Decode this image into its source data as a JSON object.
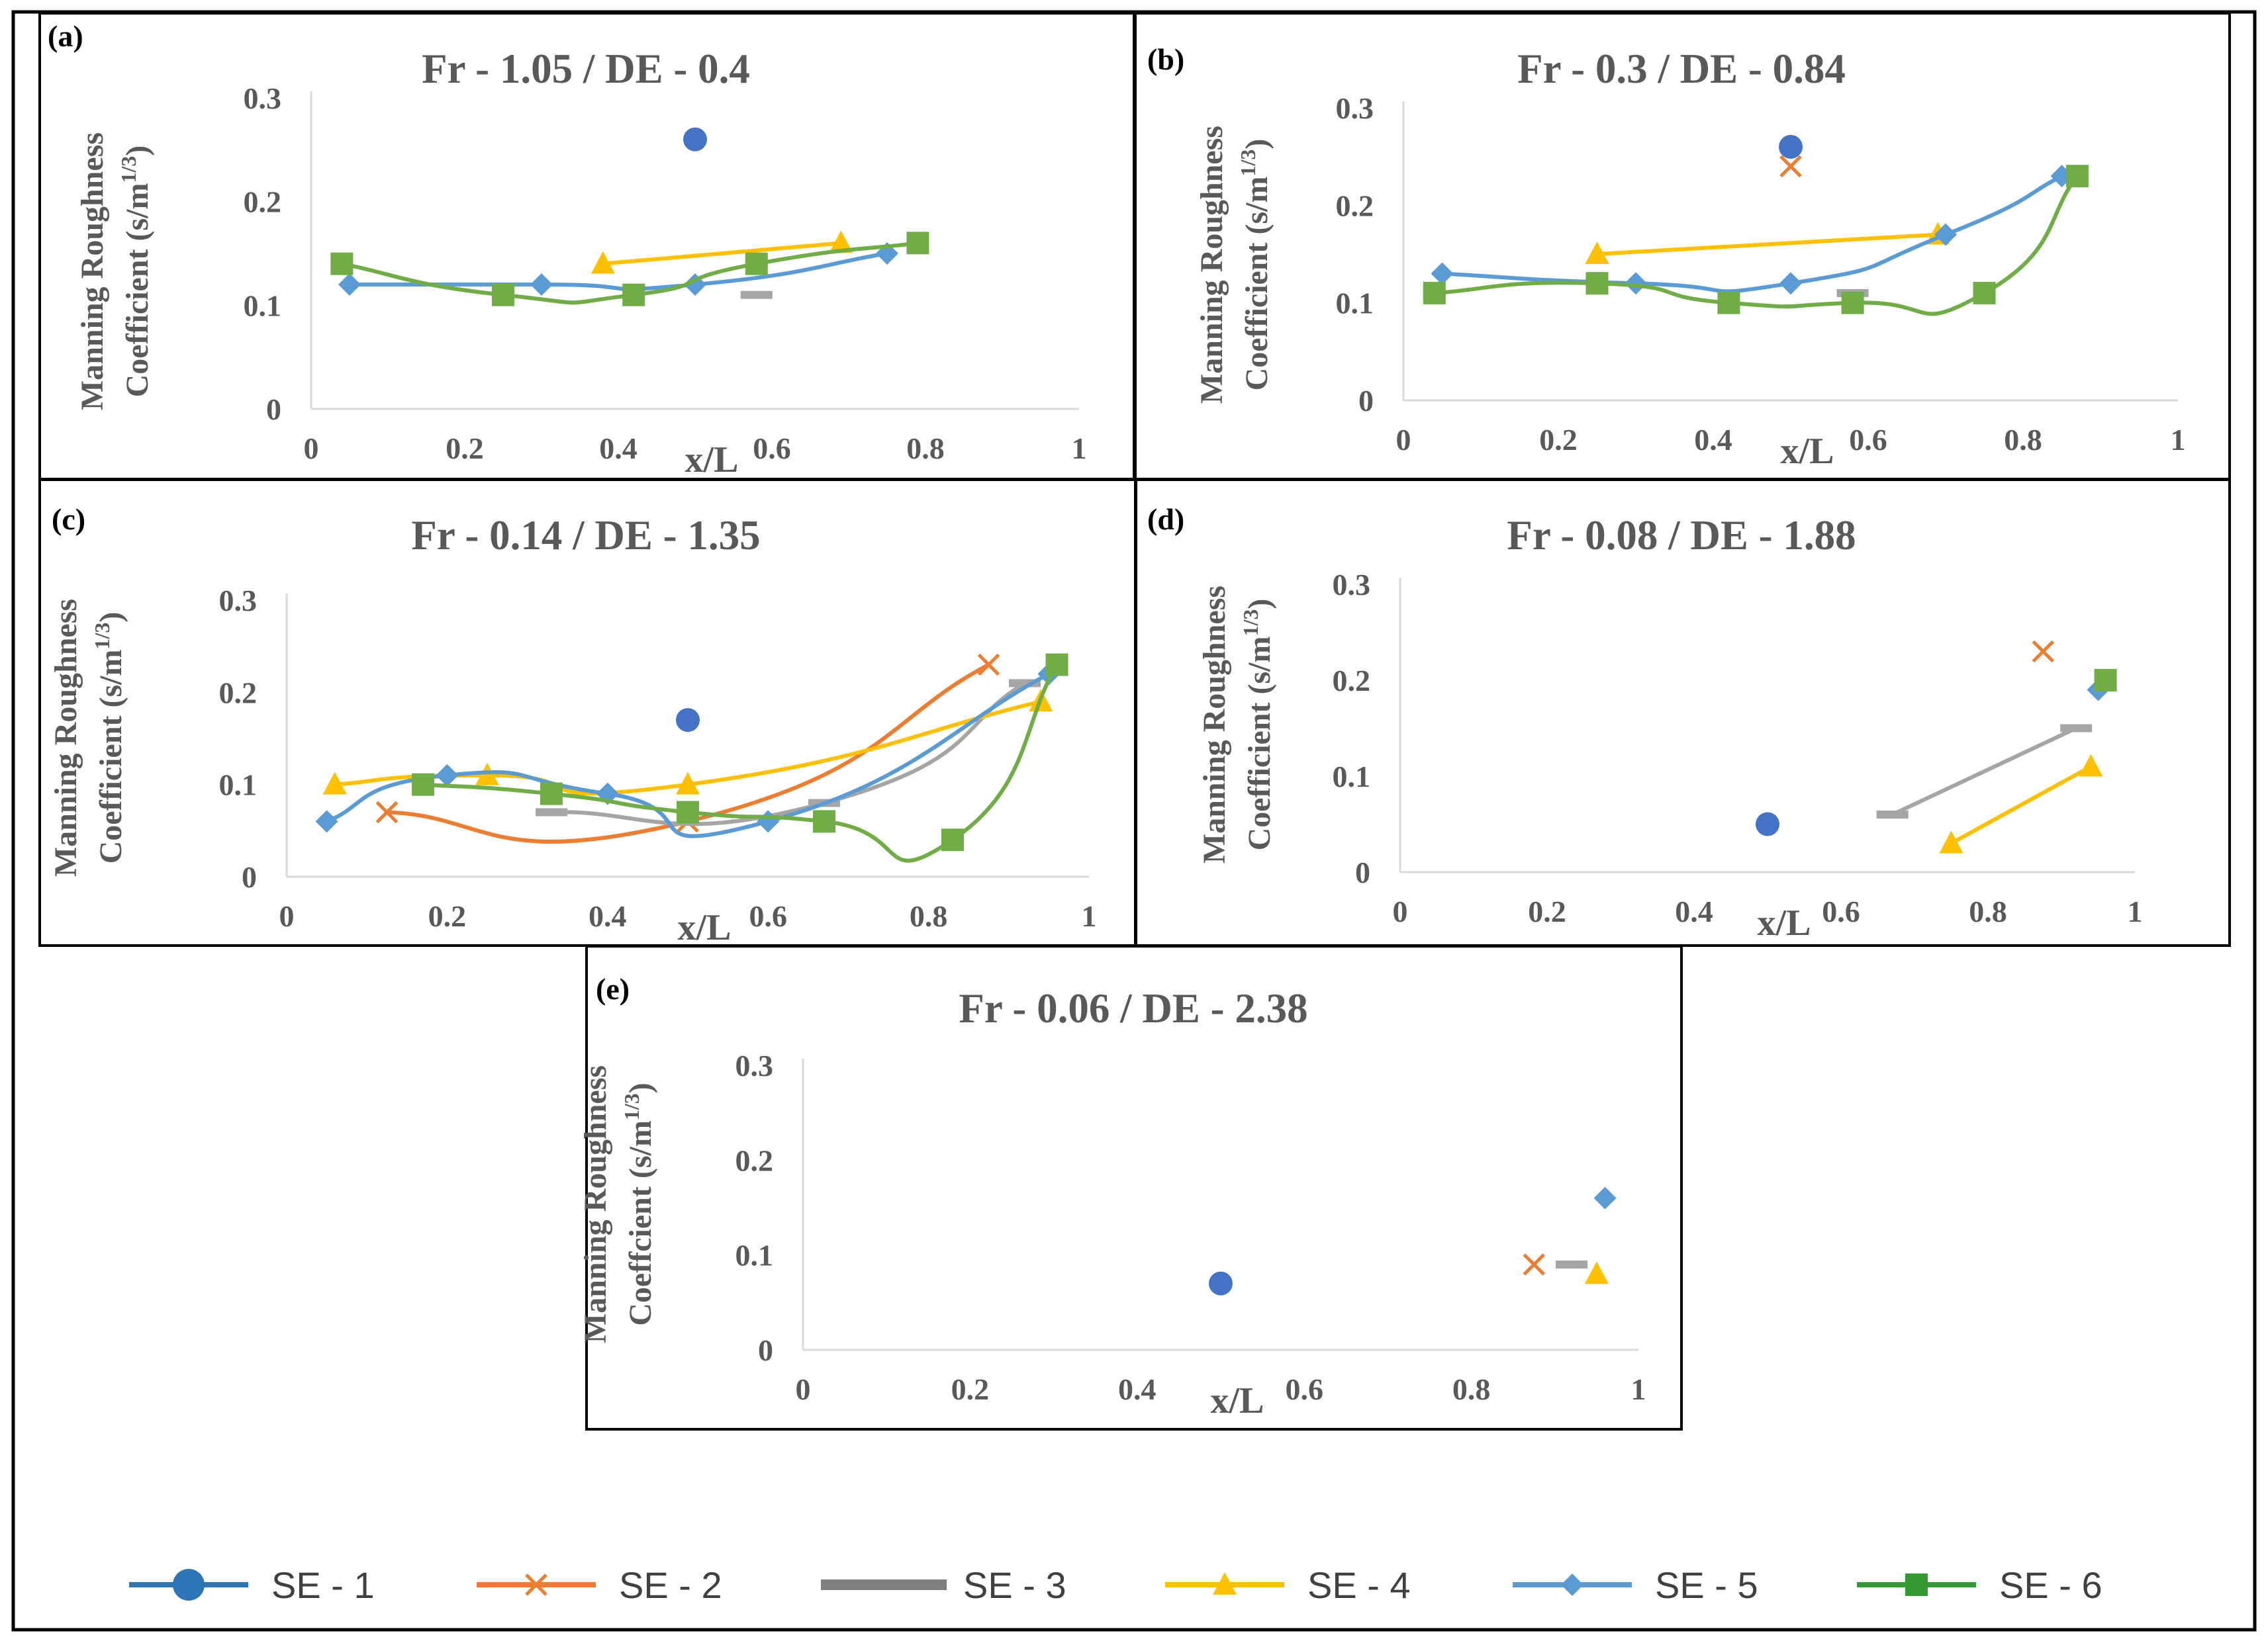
{
  "colors": {
    "SE - 1": "#4472C4",
    "SE - 2": "#ED7D31",
    "SE - 3": "#A5A5A5",
    "SE - 4": "#FFC000",
    "SE - 5": "#5B9BD5",
    "SE - 6": "#70AD47"
  },
  "legend": [
    {
      "name": "SE - 1",
      "marker": "circle",
      "color": "#2E75B6"
    },
    {
      "name": "SE - 2",
      "marker": "x",
      "color": "#ED7D31"
    },
    {
      "name": "SE - 3",
      "marker": "dash",
      "color": "#7F7F7F"
    },
    {
      "name": "SE - 4",
      "marker": "triangle",
      "color": "#FFC000"
    },
    {
      "name": "SE - 5",
      "marker": "diamond",
      "color": "#5B9BD5"
    },
    {
      "name": "SE - 6",
      "marker": "square",
      "color": "#339933"
    }
  ],
  "chart_data": [
    {
      "type": "scatter",
      "panel_label": "(a)",
      "title": "Fr - 1.05 / DE - 0.4",
      "xlabel": "x/L",
      "ylabel": [
        "Manning Roughness",
        "Coefficient (s/m",
        "1/3",
        ")"
      ],
      "xlim": [
        0,
        1
      ],
      "ylim": [
        0,
        0.3
      ],
      "xticks": [
        "0",
        "0.2",
        "0.4",
        "0.6",
        "0.8",
        "1"
      ],
      "yticks": [
        "0",
        "0.1",
        "0.2",
        "0.3"
      ],
      "series": [
        {
          "name": "SE - 1",
          "x": [
            0.5
          ],
          "y": [
            0.26
          ]
        },
        {
          "name": "SE - 3",
          "x": [
            0.58
          ],
          "y": [
            0.11
          ]
        },
        {
          "name": "SE - 4",
          "x": [
            0.38,
            0.69
          ],
          "y": [
            0.14,
            0.16
          ]
        },
        {
          "name": "SE - 5",
          "x": [
            0.05,
            0.3,
            0.5,
            0.75
          ],
          "y": [
            0.12,
            0.12,
            0.12,
            0.15
          ]
        },
        {
          "name": "SE - 6",
          "x": [
            0.04,
            0.25,
            0.42,
            0.58,
            0.79
          ],
          "y": [
            0.14,
            0.11,
            0.11,
            0.14,
            0.16
          ]
        }
      ]
    },
    {
      "type": "scatter",
      "panel_label": "(b)",
      "title": "Fr - 0.3 / DE - 0.84",
      "xlabel": "x/L",
      "ylabel": [
        "Manning Roughness",
        "Coefficient (s/m",
        "1/3",
        ")"
      ],
      "xlim": [
        0,
        1
      ],
      "ylim": [
        0,
        0.3
      ],
      "xticks": [
        "0",
        "0.2",
        "0.4",
        "0.6",
        "0.8",
        "1"
      ],
      "yticks": [
        "0",
        "0.1",
        "0.2",
        "0.3"
      ],
      "series": [
        {
          "name": "SE - 1",
          "x": [
            0.5
          ],
          "y": [
            0.26
          ]
        },
        {
          "name": "SE - 2",
          "x": [
            0.5
          ],
          "y": [
            0.24
          ]
        },
        {
          "name": "SE - 3",
          "x": [
            0.58
          ],
          "y": [
            0.11
          ]
        },
        {
          "name": "SE - 4",
          "x": [
            0.25,
            0.69
          ],
          "y": [
            0.15,
            0.17
          ]
        },
        {
          "name": "SE - 5",
          "x": [
            0.05,
            0.3,
            0.5,
            0.7,
            0.85
          ],
          "y": [
            0.13,
            0.12,
            0.12,
            0.17,
            0.23
          ]
        },
        {
          "name": "SE - 6",
          "x": [
            0.04,
            0.25,
            0.42,
            0.58,
            0.75,
            0.87
          ],
          "y": [
            0.11,
            0.12,
            0.1,
            0.1,
            0.11,
            0.23
          ]
        }
      ]
    },
    {
      "type": "scatter",
      "panel_label": "(c)",
      "title": "Fr - 0.14 / DE - 1.35",
      "xlabel": "x/L",
      "ylabel": [
        "Manning Roughness",
        "Coefficient (s/m",
        "1/3",
        ")"
      ],
      "xlim": [
        0,
        1
      ],
      "ylim": [
        0,
        0.3
      ],
      "xticks": [
        "0",
        "0.2",
        "0.4",
        "0.6",
        "0.8",
        "1"
      ],
      "yticks": [
        "0",
        "0.1",
        "0.2",
        "0.3"
      ],
      "series": [
        {
          "name": "SE - 1",
          "x": [
            0.5
          ],
          "y": [
            0.17
          ]
        },
        {
          "name": "SE - 2",
          "x": [
            0.125,
            0.5,
            0.875
          ],
          "y": [
            0.07,
            0.06,
            0.23
          ]
        },
        {
          "name": "SE - 3",
          "x": [
            0.33,
            0.67,
            0.92
          ],
          "y": [
            0.07,
            0.08,
            0.21
          ]
        },
        {
          "name": "SE - 4",
          "x": [
            0.06,
            0.25,
            0.5,
            0.94
          ],
          "y": [
            0.1,
            0.11,
            0.1,
            0.19
          ]
        },
        {
          "name": "SE - 5",
          "x": [
            0.05,
            0.2,
            0.4,
            0.6,
            0.95
          ],
          "y": [
            0.06,
            0.11,
            0.09,
            0.06,
            0.22
          ]
        },
        {
          "name": "SE - 6",
          "x": [
            0.17,
            0.33,
            0.5,
            0.67,
            0.83,
            0.96
          ],
          "y": [
            0.1,
            0.09,
            0.07,
            0.06,
            0.04,
            0.23
          ]
        }
      ]
    },
    {
      "type": "scatter",
      "panel_label": "(d)",
      "title": "Fr - 0.08 / DE - 1.88",
      "xlabel": "x/L",
      "ylabel": [
        "Manning Roughness",
        "Coefficient (s/m",
        "1/3",
        ")"
      ],
      "xlim": [
        0,
        1
      ],
      "ylim": [
        0,
        0.3
      ],
      "xticks": [
        "0",
        "0.2",
        "0.4",
        "0.6",
        "0.8",
        "1"
      ],
      "yticks": [
        "0",
        "0.1",
        "0.2",
        "0.3"
      ],
      "series": [
        {
          "name": "SE - 1",
          "x": [
            0.5
          ],
          "y": [
            0.05
          ]
        },
        {
          "name": "SE - 2",
          "x": [
            0.875
          ],
          "y": [
            0.23
          ]
        },
        {
          "name": "SE - 3",
          "x": [
            0.67,
            0.92
          ],
          "y": [
            0.06,
            0.15
          ]
        },
        {
          "name": "SE - 4",
          "x": [
            0.75,
            0.94
          ],
          "y": [
            0.03,
            0.11
          ]
        },
        {
          "name": "SE - 5",
          "x": [
            0.95
          ],
          "y": [
            0.19
          ]
        },
        {
          "name": "SE - 6",
          "x": [
            0.96
          ],
          "y": [
            0.2
          ]
        }
      ]
    },
    {
      "type": "scatter",
      "panel_label": "(e)",
      "title": "Fr - 0.06 / DE - 2.38",
      "xlabel": "x/L",
      "ylabel": [
        "Manning Roughness",
        "Coeffcient  (s/m",
        "1/3",
        ")"
      ],
      "xlim": [
        0,
        1
      ],
      "ylim": [
        0,
        0.3
      ],
      "xticks": [
        "0",
        "0.2",
        "0.4",
        "0.6",
        "0.8",
        "1"
      ],
      "yticks": [
        "0",
        "0.1",
        "0.2",
        "0.3"
      ],
      "series": [
        {
          "name": "SE - 1",
          "x": [
            0.5
          ],
          "y": [
            0.07
          ]
        },
        {
          "name": "SE - 2",
          "x": [
            0.875
          ],
          "y": [
            0.09
          ]
        },
        {
          "name": "SE - 3",
          "x": [
            0.92
          ],
          "y": [
            0.09
          ]
        },
        {
          "name": "SE - 4",
          "x": [
            0.95
          ],
          "y": [
            0.08
          ]
        },
        {
          "name": "SE - 5",
          "x": [
            0.96
          ],
          "y": [
            0.16
          ]
        }
      ]
    }
  ]
}
